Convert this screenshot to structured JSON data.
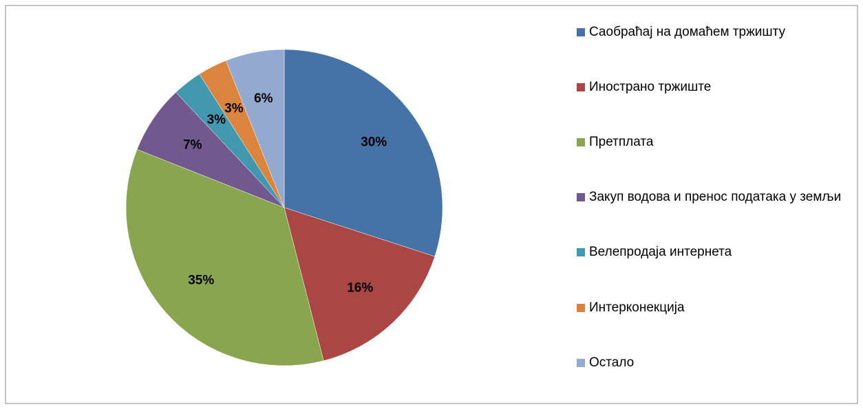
{
  "chart_data": {
    "type": "pie",
    "categories": [
      "Саобраћај на домаћем тржишту",
      "Инострано тржиште",
      "Претплата",
      "Закуп водова и пренос података у земљи",
      "Велепродаја интернета",
      "Интерконекција",
      "Остало"
    ],
    "values": [
      30,
      16,
      35,
      7,
      3,
      3,
      6
    ],
    "value_labels": [
      "30%",
      "16%",
      "35%",
      "7%",
      "3%",
      "3%",
      "6%"
    ],
    "colors": [
      "#4572a7",
      "#aa4643",
      "#89a54e",
      "#71588f",
      "#4198af",
      "#db843d",
      "#93a9cf"
    ],
    "legend": "right"
  }
}
